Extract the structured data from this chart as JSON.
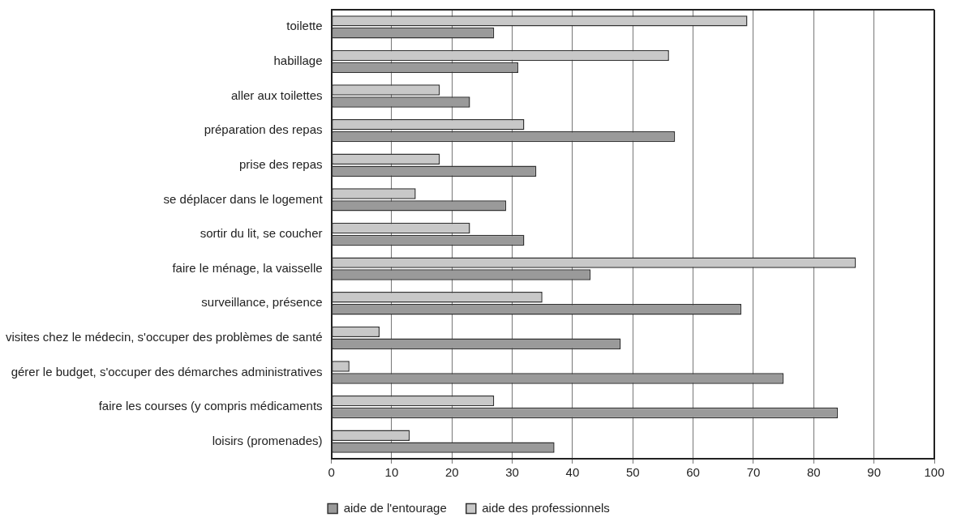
{
  "chart_data": {
    "type": "bar",
    "orientation": "horizontal",
    "categories": [
      "toilette",
      "habillage",
      "aller aux toilettes",
      "préparation des repas",
      "prise des repas",
      "se déplacer dans le logement",
      "sortir du lit, se coucher",
      "faire le ménage, la vaisselle",
      "surveillance, présence",
      "visites chez le médecin, s'occuper des problèmes de santé",
      "gérer le budget, s'occuper des démarches administratives",
      "faire les courses (y compris médicaments",
      "loisirs (promenades)"
    ],
    "series": [
      {
        "name": "aide des professionnels",
        "color": "#c8c8c8",
        "values": [
          69,
          56,
          18,
          32,
          18,
          14,
          23,
          87,
          35,
          8,
          3,
          27,
          13
        ]
      },
      {
        "name": "aide de l'entourage",
        "color": "#9a9a9a",
        "values": [
          27,
          31,
          23,
          57,
          34,
          29,
          32,
          43,
          68,
          48,
          75,
          84,
          37
        ]
      }
    ],
    "xlim": [
      0,
      100
    ],
    "xticks": [
      0,
      10,
      20,
      30,
      40,
      50,
      60,
      70,
      80,
      90,
      100
    ],
    "grid": "x",
    "legend": "bottom"
  }
}
